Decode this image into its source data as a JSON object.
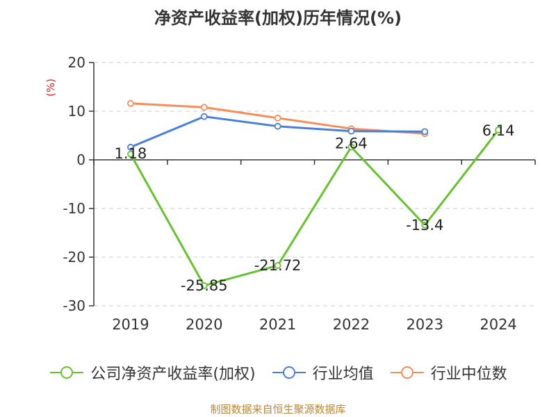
{
  "title": "净资产收益率(加权)历年情况(%)",
  "source": "制图数据来自恒生聚源数据库",
  "colors": {
    "company": "#66c130",
    "industry_avg": "#4a7fd8",
    "industry_median": "#f58d5b",
    "axis_label": "#e02020",
    "text": "#333333",
    "grid": "#cccccc",
    "source": "#b8873a"
  },
  "chart_data": {
    "type": "line",
    "ylabel": "(%)",
    "ylim": [
      -30,
      20
    ],
    "yticks": [
      20,
      10,
      0,
      -10,
      -20,
      -30
    ],
    "categories": [
      "2019",
      "2020",
      "2021",
      "2022",
      "2023",
      "2024"
    ],
    "grid": "horizontal dashed",
    "legend_position": "bottom",
    "series": [
      {
        "name": "公司净资产收益率(加权)",
        "key": "company",
        "values": [
          1.18,
          -25.85,
          -21.72,
          2.64,
          -13.4,
          6.14
        ],
        "labels": [
          "1.18",
          "-25.85",
          "-21.72",
          "2.64",
          "-13.4",
          "6.14"
        ]
      },
      {
        "name": "行业均值",
        "key": "industry_avg",
        "values": [
          2.6,
          8.9,
          6.9,
          5.9,
          5.8,
          null
        ]
      },
      {
        "name": "行业中位数",
        "key": "industry_median",
        "values": [
          11.6,
          10.8,
          8.6,
          6.4,
          5.4,
          null
        ]
      }
    ]
  }
}
